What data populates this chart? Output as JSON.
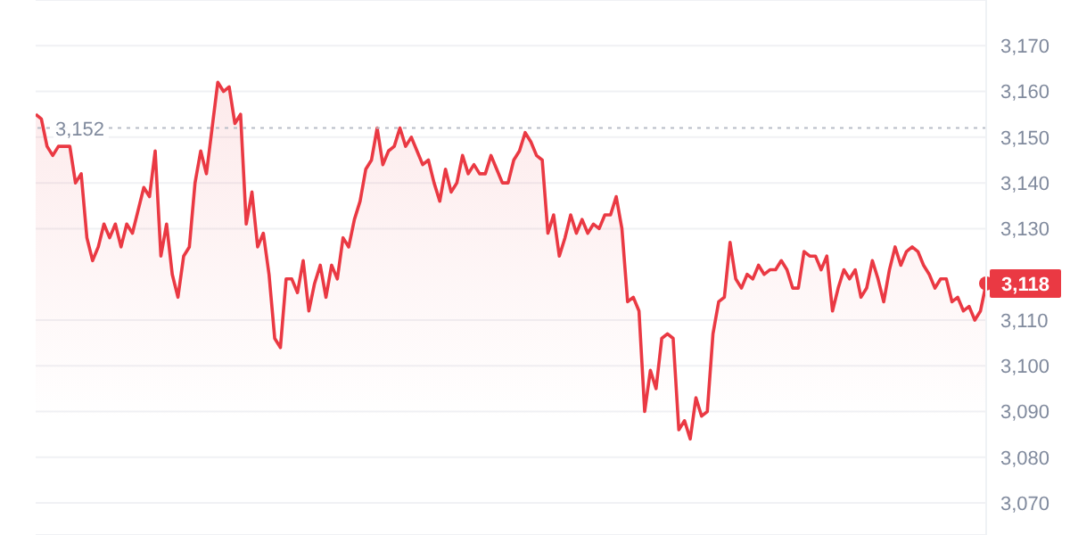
{
  "chart_data": {
    "type": "area",
    "ylim": [
      3063,
      3180
    ],
    "yticks": [
      {
        "value": 3070,
        "label": "3,070"
      },
      {
        "value": 3080,
        "label": "3,080"
      },
      {
        "value": 3090,
        "label": "3,090"
      },
      {
        "value": 3100,
        "label": "3,100"
      },
      {
        "value": 3110,
        "label": "3,110"
      },
      {
        "value": 3130,
        "label": "3,130"
      },
      {
        "value": 3140,
        "label": "3,140"
      },
      {
        "value": 3150,
        "label": "3,150"
      },
      {
        "value": 3160,
        "label": "3,160"
      },
      {
        "value": 3170,
        "label": "3,170"
      }
    ],
    "tick_labels": "y",
    "grid": "y",
    "legend": false,
    "marker": "none",
    "categories": [
      null,
      null,
      null,
      null,
      null,
      null,
      null,
      null,
      null,
      null,
      null,
      null,
      null,
      null,
      null,
      null,
      null,
      null,
      null,
      null,
      null,
      null,
      null,
      null,
      null,
      null,
      null,
      null,
      null,
      null,
      null,
      null,
      null,
      null,
      null,
      null,
      null,
      null,
      null,
      null,
      null,
      null,
      null,
      null,
      null,
      null,
      null,
      null,
      null,
      null,
      null,
      null,
      null,
      null,
      null,
      null,
      null,
      null,
      null,
      null,
      null,
      null,
      null,
      null,
      null,
      null,
      null,
      null,
      null,
      null,
      null,
      null,
      null,
      null,
      null,
      null,
      null,
      null,
      null,
      null,
      null,
      null,
      null,
      null,
      null,
      null,
      null,
      null,
      null,
      null,
      null,
      null,
      null,
      null,
      null,
      null,
      null,
      null,
      null,
      null,
      null,
      null,
      null,
      null,
      null,
      null,
      null,
      null,
      null,
      null,
      null,
      null,
      null,
      null,
      null,
      null,
      null,
      null,
      null,
      null,
      null,
      null,
      null,
      null,
      null,
      null,
      null,
      null,
      null,
      null,
      null,
      null,
      null,
      null,
      null,
      null,
      null,
      null,
      null,
      null,
      null,
      null,
      null,
      null,
      null,
      null,
      null,
      null,
      null,
      null,
      null,
      null,
      null,
      null,
      null,
      null,
      null,
      null,
      null,
      null,
      null,
      null,
      null,
      null,
      null,
      null,
      null,
      null
    ],
    "series": [
      {
        "color": "#ea3943",
        "values": [
          3155,
          3154,
          3148,
          3146,
          3148,
          3148,
          3148,
          3140,
          3142,
          3128,
          3123,
          3126,
          3131,
          3128,
          3131,
          3126,
          3131,
          3129,
          3134,
          3139,
          3137,
          3147,
          3124,
          3131,
          3120,
          3115,
          3124,
          3126,
          3140,
          3147,
          3142,
          3152,
          3162,
          3160,
          3161,
          3153,
          3155,
          3131,
          3138,
          3126,
          3129,
          3120,
          3106,
          3104,
          3119,
          3119,
          3116,
          3123,
          3112,
          3118,
          3122,
          3115,
          3122,
          3119,
          3128,
          3126,
          3132,
          3136,
          3143,
          3145,
          3152,
          3144,
          3147,
          3148,
          3152,
          3148,
          3150,
          3147,
          3144,
          3145,
          3140,
          3136,
          3143,
          3138,
          3140,
          3146,
          3142,
          3144,
          3142,
          3142,
          3146,
          3143,
          3140,
          3140,
          3145,
          3147,
          3151,
          3149,
          3146,
          3145,
          3129,
          3133,
          3124,
          3128,
          3133,
          3129,
          3132,
          3129,
          3131,
          3130,
          3133,
          3133,
          3137,
          3130,
          3114,
          3115,
          3112,
          3090,
          3099,
          3095,
          3106,
          3107,
          3106,
          3086,
          3088,
          3084,
          3093,
          3089,
          3090,
          3107,
          3114,
          3115,
          3127,
          3119,
          3117,
          3120,
          3119,
          3122,
          3120,
          3121,
          3121,
          3123,
          3121,
          3117,
          3117,
          3125,
          3124,
          3124,
          3121,
          3124,
          3112,
          3117,
          3121,
          3119,
          3121,
          3115,
          3117,
          3123,
          3119,
          3114,
          3121,
          3126,
          3122,
          3125,
          3126,
          3125,
          3122,
          3120,
          3117,
          3119,
          3119,
          3114,
          3115,
          3112,
          3113,
          3110,
          3112,
          3118
        ]
      }
    ],
    "ref_lines": [
      {
        "axis": "y",
        "value": 3152,
        "label": "3,152",
        "color": "#b8bdc7",
        "line_style": "dotted"
      }
    ],
    "annotations": [
      {
        "text": "3,118",
        "y": 3118
      }
    ]
  }
}
